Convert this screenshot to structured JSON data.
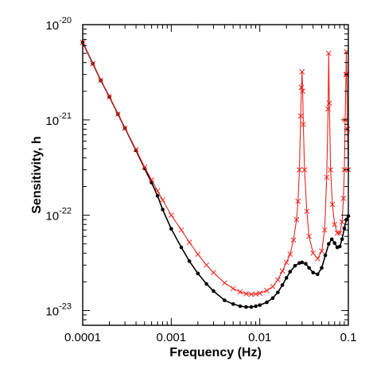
{
  "chart_data": {
    "type": "line",
    "title": "",
    "xlabel": "Frequency (Hz)",
    "ylabel": "Sensitivity, h",
    "xscale": "log",
    "yscale": "log",
    "xlim": [
      0.0001,
      0.1
    ],
    "ylim": [
      7e-24,
      1e-20
    ],
    "grid": false,
    "legend": "none",
    "x_ticks": [
      {
        "value": 0.0001,
        "label": "0.0001"
      },
      {
        "value": 0.001,
        "label": "0.001"
      },
      {
        "value": 0.01,
        "label": "0.01"
      },
      {
        "value": 0.1,
        "label": "0.1"
      }
    ],
    "y_ticks": [
      {
        "value": 1e-23,
        "base": "10",
        "exp": "-23"
      },
      {
        "value": 1e-22,
        "base": "10",
        "exp": "-22"
      },
      {
        "value": 1e-21,
        "base": "10",
        "exp": "-21"
      },
      {
        "value": 1e-20,
        "base": "10",
        "exp": "-20"
      }
    ],
    "series": [
      {
        "color": "#000000",
        "marker": "dot",
        "points": [
          [
            0.0001,
            6.5e-21
          ],
          [
            0.00013,
            3.9e-21
          ],
          [
            0.00016,
            2.6e-21
          ],
          [
            0.0002,
            1.75e-21
          ],
          [
            0.00025,
            1.15e-21
          ],
          [
            0.0003,
            8.2e-22
          ],
          [
            0.0004,
            4.8e-22
          ],
          [
            0.0005,
            3.1e-22
          ],
          [
            0.0006,
            2.2e-22
          ],
          [
            0.0007,
            1.6e-22
          ],
          [
            0.0008,
            1.15e-22
          ],
          [
            0.001,
            7.2e-23
          ],
          [
            0.0013,
            4.6e-23
          ],
          [
            0.0016,
            3.3e-23
          ],
          [
            0.002,
            2.45e-23
          ],
          [
            0.0025,
            1.9e-23
          ],
          [
            0.003,
            1.6e-23
          ],
          [
            0.004,
            1.28e-23
          ],
          [
            0.005,
            1.17e-23
          ],
          [
            0.006,
            1.11e-23
          ],
          [
            0.007,
            1.09e-23
          ],
          [
            0.008,
            1.09e-23
          ],
          [
            0.009,
            1.11e-23
          ],
          [
            0.01,
            1.14e-23
          ],
          [
            0.012,
            1.22e-23
          ],
          [
            0.014,
            1.35e-23
          ],
          [
            0.016,
            1.55e-23
          ],
          [
            0.018,
            1.85e-23
          ],
          [
            0.02,
            2.2e-23
          ],
          [
            0.022,
            2.55e-23
          ],
          [
            0.025,
            2.95e-23
          ],
          [
            0.028,
            3.15e-23
          ],
          [
            0.03,
            3.2e-23
          ],
          [
            0.033,
            3.1e-23
          ],
          [
            0.036,
            2.8e-23
          ],
          [
            0.04,
            2.5e-23
          ],
          [
            0.045,
            2.4e-23
          ],
          [
            0.05,
            2.8e-23
          ],
          [
            0.055,
            3.8e-23
          ],
          [
            0.06,
            5e-23
          ],
          [
            0.065,
            5.6e-23
          ],
          [
            0.07,
            5.1e-23
          ],
          [
            0.075,
            4.6e-23
          ],
          [
            0.08,
            4.7e-23
          ],
          [
            0.085,
            5.6e-23
          ],
          [
            0.09,
            7.3e-23
          ],
          [
            0.095,
            9e-23
          ],
          [
            0.1,
            9.8e-23
          ]
        ]
      },
      {
        "color": "#e8251f",
        "marker": "x",
        "points": [
          [
            0.0001,
            6.5e-21
          ],
          [
            0.00013,
            3.9e-21
          ],
          [
            0.00016,
            2.6e-21
          ],
          [
            0.0002,
            1.75e-21
          ],
          [
            0.00025,
            1.15e-21
          ],
          [
            0.0003,
            8.2e-22
          ],
          [
            0.0004,
            4.9e-22
          ],
          [
            0.0005,
            3.2e-22
          ],
          [
            0.0006,
            2.35e-22
          ],
          [
            0.0007,
            1.8e-22
          ],
          [
            0.0008,
            1.45e-22
          ],
          [
            0.001,
            1e-22
          ],
          [
            0.0013,
            7e-23
          ],
          [
            0.0016,
            5.2e-23
          ],
          [
            0.002,
            3.9e-23
          ],
          [
            0.0025,
            3e-23
          ],
          [
            0.003,
            2.5e-23
          ],
          [
            0.004,
            1.95e-23
          ],
          [
            0.005,
            1.7e-23
          ],
          [
            0.006,
            1.57e-23
          ],
          [
            0.007,
            1.5e-23
          ],
          [
            0.008,
            1.48e-23
          ],
          [
            0.009,
            1.49e-23
          ],
          [
            0.01,
            1.52e-23
          ],
          [
            0.012,
            1.62e-23
          ],
          [
            0.014,
            1.78e-23
          ],
          [
            0.016,
            2.1e-23
          ],
          [
            0.018,
            2.6e-23
          ],
          [
            0.02,
            3.2e-23
          ],
          [
            0.022,
            3.9e-23
          ],
          [
            0.024,
            5.5e-23
          ],
          [
            0.026,
            9e-23
          ],
          [
            0.027,
            1.4e-22
          ],
          [
            0.028,
            3e-22
          ],
          [
            0.029,
            1.1e-21
          ],
          [
            0.0295,
            2.2e-21
          ],
          [
            0.03,
            3.2e-21
          ],
          [
            0.0305,
            2e-21
          ],
          [
            0.031,
            9e-22
          ],
          [
            0.032,
            3e-22
          ],
          [
            0.034,
            1.1e-22
          ],
          [
            0.036,
            6e-23
          ],
          [
            0.04,
            4e-23
          ],
          [
            0.045,
            3.5e-23
          ],
          [
            0.05,
            4.2e-23
          ],
          [
            0.054,
            7e-23
          ],
          [
            0.057,
            2.5e-22
          ],
          [
            0.059,
            1.3e-21
          ],
          [
            0.06,
            5e-21
          ],
          [
            0.061,
            1.5e-21
          ],
          [
            0.063,
            3e-22
          ],
          [
            0.066,
            1.3e-22
          ],
          [
            0.07,
            8e-23
          ],
          [
            0.075,
            6.5e-23
          ],
          [
            0.08,
            6.5e-23
          ],
          [
            0.085,
            8.5e-23
          ],
          [
            0.088,
            1.5e-22
          ],
          [
            0.09,
            3e-22
          ],
          [
            0.092,
            1e-21
          ],
          [
            0.094,
            3e-21
          ],
          [
            0.095,
            5.2e-21
          ],
          [
            0.096,
            3e-21
          ],
          [
            0.098,
            8e-22
          ],
          [
            0.1,
            3e-22
          ]
        ]
      }
    ]
  }
}
